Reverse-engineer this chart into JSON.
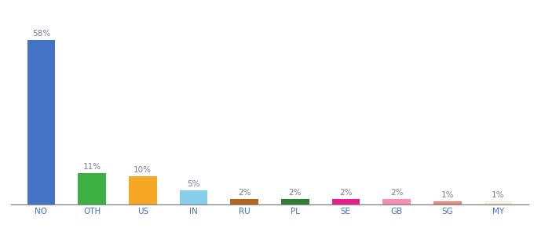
{
  "categories": [
    "NO",
    "OTH",
    "US",
    "IN",
    "RU",
    "PL",
    "SE",
    "GB",
    "SG",
    "MY"
  ],
  "values": [
    58,
    11,
    10,
    5,
    2,
    2,
    2,
    2,
    1,
    1
  ],
  "bar_colors": [
    "#4472C4",
    "#3CB043",
    "#F5A623",
    "#87CEEB",
    "#B5651D",
    "#2E7D32",
    "#E91E8C",
    "#F48FB1",
    "#E8897A",
    "#F5F0DC"
  ],
  "title_fontsize": 10,
  "label_fontsize": 7.5,
  "tick_fontsize": 7.5,
  "label_color": "#7B7B9B",
  "ylim": [
    0,
    68
  ],
  "bar_width": 0.55,
  "background_color": "#ffffff",
  "figsize": [
    6.8,
    3.0
  ],
  "dpi": 100
}
